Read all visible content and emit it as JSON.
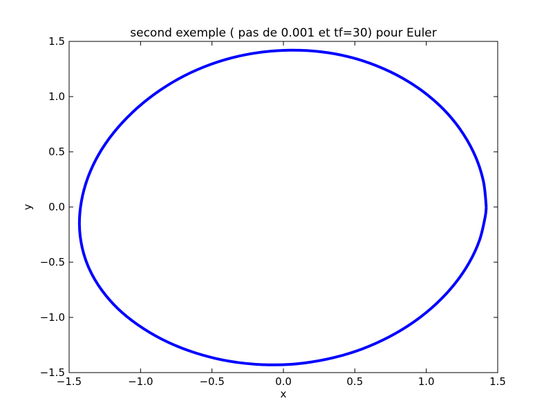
{
  "chart_data": {
    "type": "line",
    "title": "second exemple ( pas de 0.001 et tf=30) pour Euler",
    "xlabel": "x",
    "ylabel": "y",
    "xlim": [
      -1.5,
      1.5
    ],
    "ylim": [
      -1.5,
      1.5
    ],
    "xticks": [
      -1.5,
      -1.0,
      -0.5,
      0.0,
      0.5,
      1.0,
      1.5
    ],
    "yticks": [
      -1.5,
      -1.0,
      -0.5,
      0.0,
      0.5,
      1.0,
      1.5
    ],
    "xtick_labels": [
      "−1.5",
      "−1.0",
      "−0.5",
      "0.0",
      "0.5",
      "1.0",
      "1.5"
    ],
    "ytick_labels": [
      "−1.5",
      "−1.0",
      "−0.5",
      "0.0",
      "0.5",
      "1.0",
      "1.5"
    ],
    "grid": false,
    "line_color": "#0000ff",
    "series": [
      {
        "x": [
          1.42,
          1.401,
          1.348,
          1.262,
          1.147,
          1.004,
          0.838,
          0.654,
          0.459,
          0.255,
          0.049,
          -0.157,
          -0.359,
          -0.554,
          -0.738,
          -0.908,
          -1.061,
          -1.192,
          -1.296,
          -1.37,
          -1.414,
          -1.428,
          -1.409,
          -1.358,
          -1.274,
          -1.16,
          -1.018,
          -0.853,
          -0.67,
          -0.474,
          -0.27,
          -0.063,
          0.146,
          0.354,
          0.553,
          0.741,
          0.914,
          1.067,
          1.197,
          1.3,
          1.373,
          1.412,
          1.42
        ],
        "y": [
          0.0,
          0.226,
          0.446,
          0.656,
          0.849,
          1.02,
          1.164,
          1.278,
          1.36,
          1.407,
          1.42,
          1.402,
          1.352,
          1.27,
          1.158,
          1.017,
          0.852,
          0.667,
          0.469,
          0.262,
          0.051,
          -0.16,
          -0.366,
          -0.563,
          -0.749,
          -0.919,
          -1.068,
          -1.196,
          -1.298,
          -1.372,
          -1.416,
          -1.43,
          -1.413,
          -1.364,
          -1.285,
          -1.176,
          -1.04,
          -0.88,
          -0.7,
          -0.505,
          -0.3,
          -0.092,
          0.0
        ]
      }
    ]
  }
}
